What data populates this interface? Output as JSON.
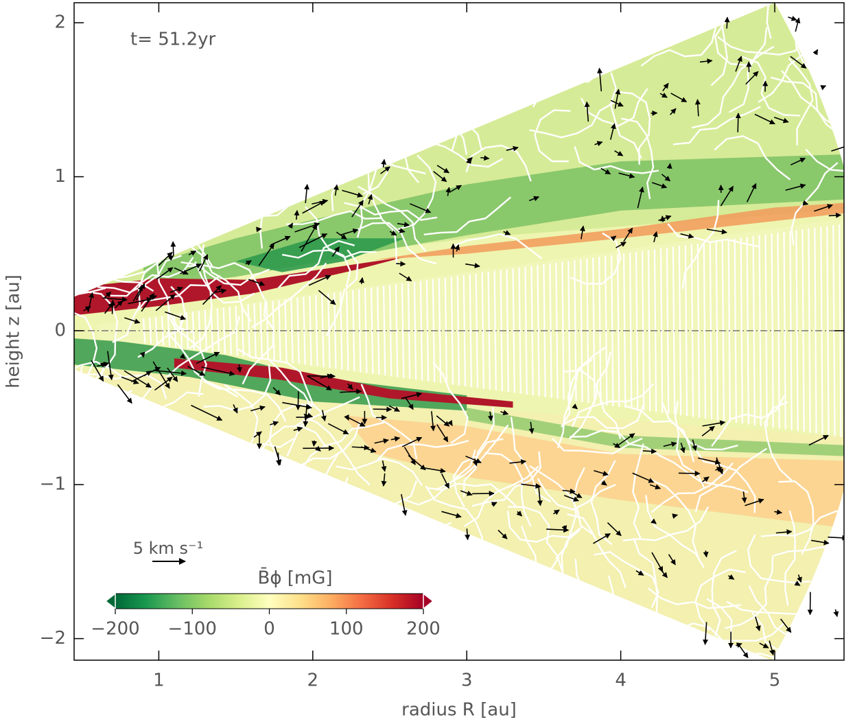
{
  "chart_data": {
    "type": "heatmap",
    "annotation": "t= 51.2yr",
    "xlabel": "radius  R [au]",
    "ylabel": "height  z [au]",
    "xlim": [
      0.45,
      5.45
    ],
    "ylim": [
      -2.14,
      2.13
    ],
    "xticks": [
      1,
      2,
      3,
      4,
      5
    ],
    "yticks": [
      {
        "value": -2,
        "label": "−2"
      },
      {
        "value": -1,
        "label": "−1"
      },
      0,
      1,
      2
    ],
    "reference_vector": {
      "label": "5 km s⁻¹"
    },
    "colorbar": {
      "label": "B̄ϕ [mG]",
      "lim": [
        -200,
        200
      ],
      "ticks": [
        {
          "value": -200,
          "label": "−200"
        },
        {
          "value": -100,
          "label": "−100"
        },
        0,
        100,
        200
      ],
      "colormap": [
        "#006837",
        "#1a9850",
        "#66bd63",
        "#a6d96a",
        "#d9ef8b",
        "#ffffbf",
        "#fee08b",
        "#fdae61",
        "#f46d43",
        "#d73027",
        "#a50026"
      ]
    }
  }
}
